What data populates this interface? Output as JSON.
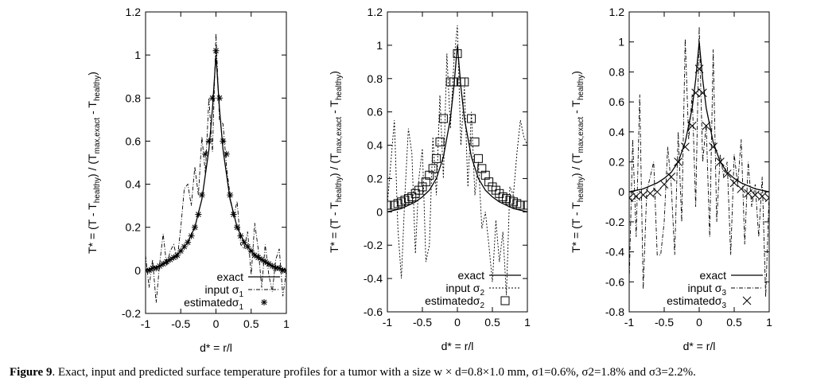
{
  "charts": [
    {
      "type": "line",
      "xlabel": "d* = r/l",
      "ylabel": "T* = (T - T_healthy) / (T_max,exact - T_healthy)",
      "xlim": [
        -1,
        1
      ],
      "ylim": [
        -0.2,
        1.2
      ],
      "xticks": [
        -1,
        -0.5,
        0,
        0.5,
        1
      ],
      "xtick_labels": [
        "-1",
        "-0.5",
        "0",
        "0.5",
        "1"
      ],
      "yticks": [
        -0.2,
        0,
        0.2,
        0.4,
        0.6,
        0.8,
        1,
        1.2
      ],
      "ytick_labels": [
        "-0.2",
        "0",
        "0.2",
        "0.4",
        "0.6",
        "0.8",
        "1",
        "1.2"
      ],
      "legend": [
        "exact",
        "input σ1",
        "estimatedσ1"
      ],
      "legend_placement": "bottom-right",
      "series": [
        {
          "name": "exact",
          "style": "solid",
          "x": [
            -1,
            -0.9,
            -0.8,
            -0.7,
            -0.6,
            -0.5,
            -0.4,
            -0.3,
            -0.2,
            -0.1,
            -0.05,
            0,
            0.05,
            0.1,
            0.2,
            0.3,
            0.4,
            0.5,
            0.6,
            0.7,
            0.8,
            0.9,
            1
          ],
          "y": [
            0.0,
            0.01,
            0.02,
            0.04,
            0.06,
            0.09,
            0.13,
            0.2,
            0.33,
            0.56,
            0.75,
            1.0,
            0.75,
            0.56,
            0.33,
            0.2,
            0.13,
            0.09,
            0.06,
            0.04,
            0.02,
            0.01,
            0.0
          ]
        },
        {
          "name": "input σ1",
          "style": "dashdot",
          "x": [
            -1,
            -0.95,
            -0.9,
            -0.85,
            -0.8,
            -0.75,
            -0.7,
            -0.65,
            -0.6,
            -0.55,
            -0.5,
            -0.45,
            -0.4,
            -0.35,
            -0.3,
            -0.25,
            -0.2,
            -0.15,
            -0.1,
            -0.05,
            0,
            0.05,
            0.1,
            0.15,
            0.2,
            0.25,
            0.3,
            0.35,
            0.4,
            0.45,
            0.5,
            0.55,
            0.6,
            0.65,
            0.7,
            0.75,
            0.8,
            0.85,
            0.9,
            0.95,
            1
          ],
          "y": [
            0.07,
            -0.08,
            0.05,
            -0.15,
            0.03,
            0.17,
            0.02,
            0.09,
            0.12,
            0.05,
            0.2,
            0.38,
            0.4,
            0.3,
            0.48,
            0.35,
            0.62,
            0.45,
            0.8,
            0.55,
            1.1,
            0.7,
            0.68,
            0.48,
            0.35,
            0.25,
            0.32,
            0.12,
            0.1,
            0.18,
            -0.02,
            0.22,
            0.1,
            -0.08,
            0.12,
            -0.02,
            -0.1,
            0.05,
            0.1,
            -0.12,
            0.0
          ]
        },
        {
          "name": "estimatedσ1",
          "style": "marker-star",
          "x": [
            -1,
            -0.95,
            -0.9,
            -0.85,
            -0.8,
            -0.75,
            -0.7,
            -0.65,
            -0.6,
            -0.55,
            -0.5,
            -0.45,
            -0.4,
            -0.35,
            -0.3,
            -0.25,
            -0.2,
            -0.15,
            -0.1,
            -0.05,
            0,
            0.05,
            0.1,
            0.15,
            0.2,
            0.25,
            0.3,
            0.35,
            0.4,
            0.45,
            0.5,
            0.55,
            0.6,
            0.65,
            0.7,
            0.75,
            0.8,
            0.85,
            0.9,
            0.95,
            1
          ],
          "y": [
            0.0,
            0.0,
            0.01,
            0.01,
            0.02,
            0.03,
            0.04,
            0.05,
            0.06,
            0.07,
            0.09,
            0.11,
            0.13,
            0.16,
            0.2,
            0.26,
            0.35,
            0.54,
            0.6,
            0.8,
            1.02,
            0.8,
            0.6,
            0.54,
            0.35,
            0.26,
            0.2,
            0.16,
            0.13,
            0.11,
            0.09,
            0.07,
            0.06,
            0.05,
            0.04,
            0.03,
            0.02,
            0.01,
            0.01,
            0.0,
            0.0
          ]
        }
      ]
    },
    {
      "type": "line",
      "xlabel": "d* = r/l",
      "ylabel": "T* = (T - T_healthy) / (T_max,exact - T_healthy)",
      "xlim": [
        -1,
        1
      ],
      "ylim": [
        -0.6,
        1.2
      ],
      "xticks": [
        -1,
        -0.5,
        0,
        0.5,
        1
      ],
      "xtick_labels": [
        "-1",
        "-0.5",
        "0",
        "0.5",
        "1"
      ],
      "yticks": [
        -0.6,
        -0.4,
        -0.2,
        0,
        0.2,
        0.4,
        0.6,
        0.8,
        1,
        1.2
      ],
      "ytick_labels": [
        "-0.6",
        "-0.4",
        "-0.2",
        "0",
        "0.2",
        "0.4",
        "0.6",
        "0.8",
        "1",
        "1.2"
      ],
      "legend": [
        "exact",
        "input σ2",
        "estimatedσ2"
      ],
      "legend_placement": "bottom-right",
      "series": [
        {
          "name": "exact",
          "style": "solid",
          "x": [
            -1,
            -0.9,
            -0.8,
            -0.7,
            -0.6,
            -0.5,
            -0.4,
            -0.3,
            -0.2,
            -0.1,
            -0.05,
            0,
            0.05,
            0.1,
            0.2,
            0.3,
            0.4,
            0.5,
            0.6,
            0.7,
            0.8,
            0.9,
            1
          ],
          "y": [
            0.0,
            0.01,
            0.02,
            0.04,
            0.06,
            0.09,
            0.13,
            0.2,
            0.33,
            0.56,
            0.75,
            1.0,
            0.75,
            0.56,
            0.33,
            0.2,
            0.13,
            0.09,
            0.06,
            0.04,
            0.02,
            0.01,
            0.0
          ]
        },
        {
          "name": "input σ2",
          "style": "dotted",
          "x": [
            -1,
            -0.95,
            -0.9,
            -0.85,
            -0.8,
            -0.75,
            -0.7,
            -0.65,
            -0.6,
            -0.55,
            -0.5,
            -0.45,
            -0.4,
            -0.35,
            -0.3,
            -0.25,
            -0.2,
            -0.15,
            -0.1,
            -0.05,
            0,
            0.05,
            0.1,
            0.15,
            0.2,
            0.25,
            0.3,
            0.35,
            0.4,
            0.45,
            0.5,
            0.55,
            0.6,
            0.65,
            0.7,
            0.75,
            0.8,
            0.85,
            0.9,
            0.95,
            1
          ],
          "y": [
            0.05,
            0.3,
            0.55,
            -0.1,
            -0.4,
            0.1,
            0.5,
            0.35,
            -0.25,
            0.2,
            0.38,
            -0.3,
            -0.2,
            0.45,
            0.1,
            0.7,
            0.2,
            0.95,
            0.5,
            0.9,
            1.12,
            0.4,
            0.75,
            0.15,
            0.6,
            0.1,
            0.3,
            -0.1,
            0.0,
            -0.2,
            -0.42,
            -0.05,
            -0.3,
            -0.12,
            -0.5,
            0.15,
            0.1,
            0.35,
            0.55,
            0.45,
            0.4
          ]
        },
        {
          "name": "estimatedσ2",
          "style": "marker-square",
          "x": [
            -1,
            -0.9,
            -0.85,
            -0.8,
            -0.75,
            -0.7,
            -0.65,
            -0.6,
            -0.55,
            -0.5,
            -0.45,
            -0.4,
            -0.35,
            -0.3,
            -0.25,
            -0.2,
            -0.1,
            -0.05,
            0,
            0.05,
            0.1,
            0.2,
            0.25,
            0.3,
            0.35,
            0.4,
            0.45,
            0.5,
            0.55,
            0.6,
            0.65,
            0.7,
            0.75,
            0.8,
            0.85,
            0.9,
            1
          ],
          "y": [
            0.04,
            0.04,
            0.05,
            0.06,
            0.07,
            0.08,
            0.09,
            0.11,
            0.13,
            0.15,
            0.18,
            0.22,
            0.26,
            0.32,
            0.42,
            0.56,
            0.78,
            0.78,
            0.95,
            0.78,
            0.78,
            0.56,
            0.42,
            0.32,
            0.26,
            0.22,
            0.18,
            0.15,
            0.13,
            0.11,
            0.09,
            0.08,
            0.07,
            0.06,
            0.05,
            0.04,
            0.04
          ]
        }
      ]
    },
    {
      "type": "line",
      "xlabel": "d* = r/l",
      "ylabel": "T* = (T - T_healthy) / (T_max,exact - T_healthy)",
      "xlim": [
        -1,
        1
      ],
      "ylim": [
        -0.8,
        1.2
      ],
      "xticks": [
        -1,
        -0.5,
        0,
        0.5,
        1
      ],
      "xtick_labels": [
        "-1",
        "-0.5",
        "0",
        "0.5",
        "1"
      ],
      "yticks": [
        -0.8,
        -0.6,
        -0.4,
        -0.2,
        0,
        0.2,
        0.4,
        0.6,
        0.8,
        1,
        1.2
      ],
      "ytick_labels": [
        "-0.8",
        "-0.6",
        "-0.4",
        "-0.2",
        "0",
        "0.2",
        "0.4",
        "0.6",
        "0.8",
        "1",
        "1.2"
      ],
      "legend": [
        "exact",
        "input σ3",
        "estimatedσ3"
      ],
      "legend_placement": "bottom-right",
      "series": [
        {
          "name": "exact",
          "style": "solid",
          "x": [
            -1,
            -0.9,
            -0.8,
            -0.7,
            -0.6,
            -0.5,
            -0.4,
            -0.3,
            -0.2,
            -0.1,
            -0.05,
            0,
            0.05,
            0.1,
            0.2,
            0.3,
            0.4,
            0.5,
            0.6,
            0.7,
            0.8,
            0.9,
            1
          ],
          "y": [
            0.0,
            0.01,
            0.02,
            0.04,
            0.06,
            0.09,
            0.13,
            0.2,
            0.33,
            0.56,
            0.75,
            1.0,
            0.75,
            0.56,
            0.33,
            0.2,
            0.13,
            0.09,
            0.06,
            0.04,
            0.02,
            0.01,
            0.0
          ]
        },
        {
          "name": "input σ3",
          "style": "dashdot",
          "x": [
            -1,
            -0.95,
            -0.9,
            -0.85,
            -0.8,
            -0.75,
            -0.7,
            -0.65,
            -0.6,
            -0.55,
            -0.5,
            -0.45,
            -0.4,
            -0.35,
            -0.3,
            -0.25,
            -0.2,
            -0.15,
            -0.1,
            -0.05,
            0,
            0.05,
            0.1,
            0.15,
            0.2,
            0.25,
            0.3,
            0.35,
            0.4,
            0.45,
            0.5,
            0.55,
            0.6,
            0.65,
            0.7,
            0.75,
            0.8,
            0.85,
            0.9,
            0.95,
            1
          ],
          "y": [
            -0.6,
            0.35,
            -0.3,
            0.65,
            -0.65,
            0.0,
            0.1,
            0.2,
            -0.42,
            -0.42,
            -0.2,
            0.3,
            0.05,
            -0.42,
            0.4,
            -0.2,
            1.02,
            0.35,
            0.65,
            -0.1,
            1.1,
            0.2,
            0.45,
            -0.3,
            0.95,
            -0.2,
            0.25,
            0.1,
            0.2,
            -0.42,
            0.25,
            0.05,
            0.35,
            -0.35,
            0.2,
            -0.1,
            0.05,
            -0.3,
            0.1,
            -0.7,
            0.0
          ]
        },
        {
          "name": "estimatedσ3",
          "style": "marker-x",
          "x": [
            -1,
            -0.9,
            -0.8,
            -0.7,
            -0.6,
            -0.5,
            -0.4,
            -0.3,
            -0.2,
            -0.1,
            -0.05,
            0,
            0.05,
            0.1,
            0.2,
            0.3,
            0.4,
            0.5,
            0.6,
            0.7,
            0.8,
            0.9,
            1
          ],
          "y": [
            -0.04,
            -0.03,
            -0.02,
            -0.01,
            0.0,
            0.05,
            0.1,
            0.2,
            0.3,
            0.44,
            0.66,
            0.82,
            0.66,
            0.44,
            0.3,
            0.2,
            0.12,
            0.06,
            0.02,
            -0.01,
            -0.02,
            -0.03,
            -0.04
          ]
        }
      ]
    }
  ],
  "caption": {
    "label": "Figure 9",
    "text": ". Exact, input and predicted surface temperature profiles for a tumor with a size w × d=0.8×1.0 mm, σ1=0.6%, σ2=1.8% and σ3=2.2%."
  }
}
